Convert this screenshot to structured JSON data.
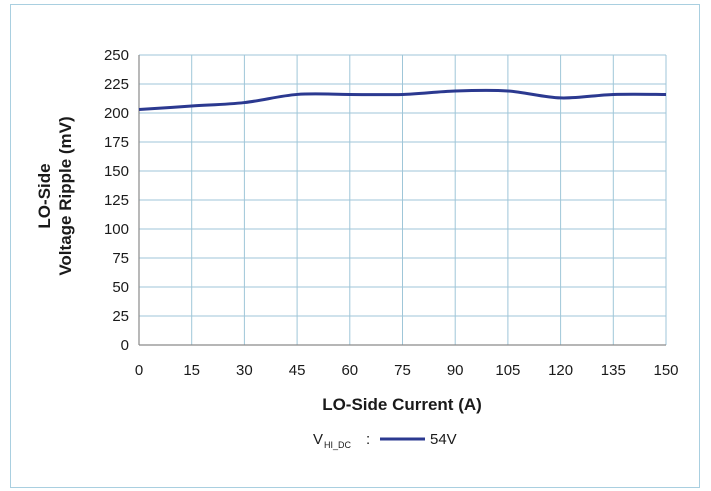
{
  "chart_data": {
    "type": "line",
    "title": "",
    "xlabel": "LO-Side Current (A)",
    "ylabel_lines": [
      "LO-Side",
      "Voltage Ripple (mV)"
    ],
    "x": [
      0,
      15,
      30,
      45,
      60,
      75,
      90,
      105,
      120,
      135,
      150
    ],
    "xlim": [
      0,
      150
    ],
    "ylim": [
      0,
      250
    ],
    "xticks": [
      "0",
      "15",
      "30",
      "45",
      "60",
      "75",
      "90",
      "105",
      "120",
      "135",
      "150"
    ],
    "yticks": [
      "0",
      "25",
      "50",
      "75",
      "100",
      "125",
      "150",
      "175",
      "200",
      "225",
      "250"
    ],
    "grid": true,
    "legend_position": "bottom",
    "legend_prefix": "V",
    "legend_subscript": "HI_DC",
    "legend_suffix": ":",
    "series": [
      {
        "name": "54V",
        "color": "#2b3990",
        "values": [
          203,
          206,
          209,
          216,
          216,
          216,
          219,
          219,
          213,
          216,
          216
        ]
      }
    ]
  }
}
